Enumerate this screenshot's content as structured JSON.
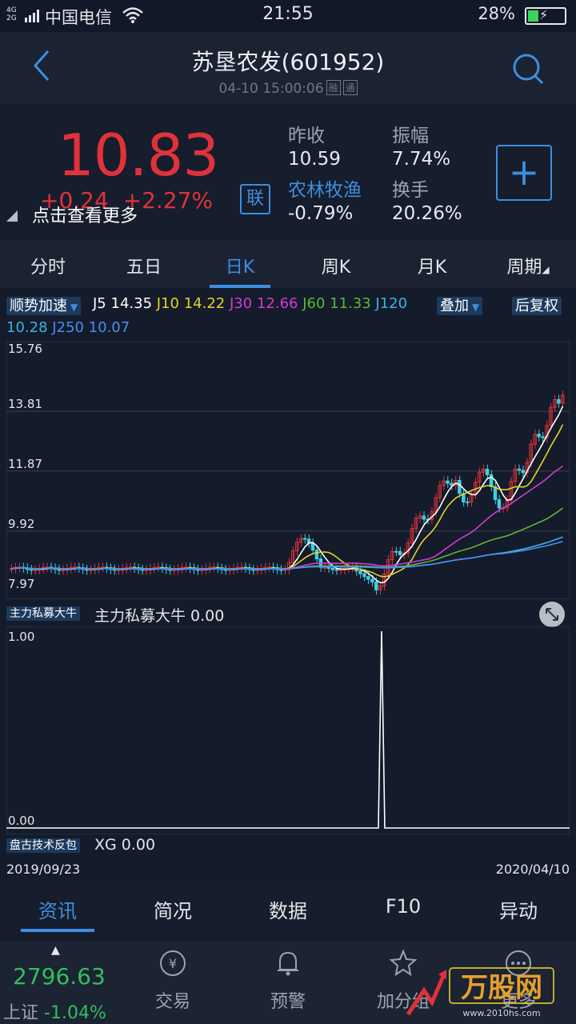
{
  "status": {
    "carrier": "中国电信",
    "net_top": "4G",
    "net_bottom": "2G",
    "time": "21:55",
    "battery": "28%"
  },
  "header": {
    "title": "苏垦农发(601952)",
    "datetime": "04-10 15:00:06",
    "tag1": "融",
    "tag2": "通"
  },
  "quote": {
    "price": "10.83",
    "change": "+0.24",
    "change_pct": "+2.27%",
    "more_tip": "点击查看更多",
    "lian": "联",
    "prev_close_label": "昨收",
    "prev_close": "10.59",
    "amplitude_label": "振幅",
    "amplitude": "7.74%",
    "sector_label": "农林牧渔",
    "sector_change": "-0.79%",
    "turnover_label": "换手",
    "turnover": "20.26%",
    "add_label": "+"
  },
  "tabs": [
    "分时",
    "五日",
    "日K",
    "周K",
    "月K",
    "周期"
  ],
  "ma_bar": {
    "indicator": "顺势加速",
    "j5_label": "J5",
    "j5": "14.35",
    "j10_label": "J10",
    "j10": "14.22",
    "j30_label": "J30",
    "j30": "12.66",
    "j60_label": "J60",
    "j60": "11.33",
    "j120_label": "J120",
    "j120": "10.28",
    "j250_label": "J250",
    "j250": "10.07",
    "overlay": "叠加",
    "restore": "后复权"
  },
  "colors": {
    "up": "#e0323a",
    "down": "#3fd0e0",
    "j5": "#ffffff",
    "j10": "#e6d22a",
    "j30": "#d43ad4",
    "j60": "#5cb833",
    "j120": "#3ab4e6",
    "j250": "#4a8cf0",
    "accent": "#3c8fe0"
  },
  "chart_data": [
    {
      "type": "candlestick",
      "ylim": [
        7.97,
        15.76
      ],
      "y_ticks": [
        "15.76",
        "13.81",
        "11.87",
        "9.92",
        "7.97"
      ],
      "x_start": "2019/09/23",
      "x_end": "2020/04/10",
      "last_close": 10.83
    },
    {
      "type": "line",
      "name": "主力私募大牛",
      "value_label": "主力私募大牛 0.00",
      "y_ticks": [
        "1.00",
        "0.00"
      ],
      "ylim": [
        0,
        1
      ],
      "spike_at_fraction": 0.67
    }
  ],
  "ind1": {
    "tag": "主力私募大牛"
  },
  "ind2": {
    "tag": "盘古技术反包",
    "text": "XG  0.00"
  },
  "info_tabs": [
    "资讯",
    "简况",
    "数据",
    "F10",
    "异动"
  ],
  "bottom": {
    "index_value": "2796.63",
    "index_name": "上证",
    "index_change": "-1.04%",
    "nav": [
      "交易",
      "预警",
      "加分组",
      "更多"
    ],
    "watermark": "万股网",
    "watermark_url": "www.2010hs.com"
  }
}
